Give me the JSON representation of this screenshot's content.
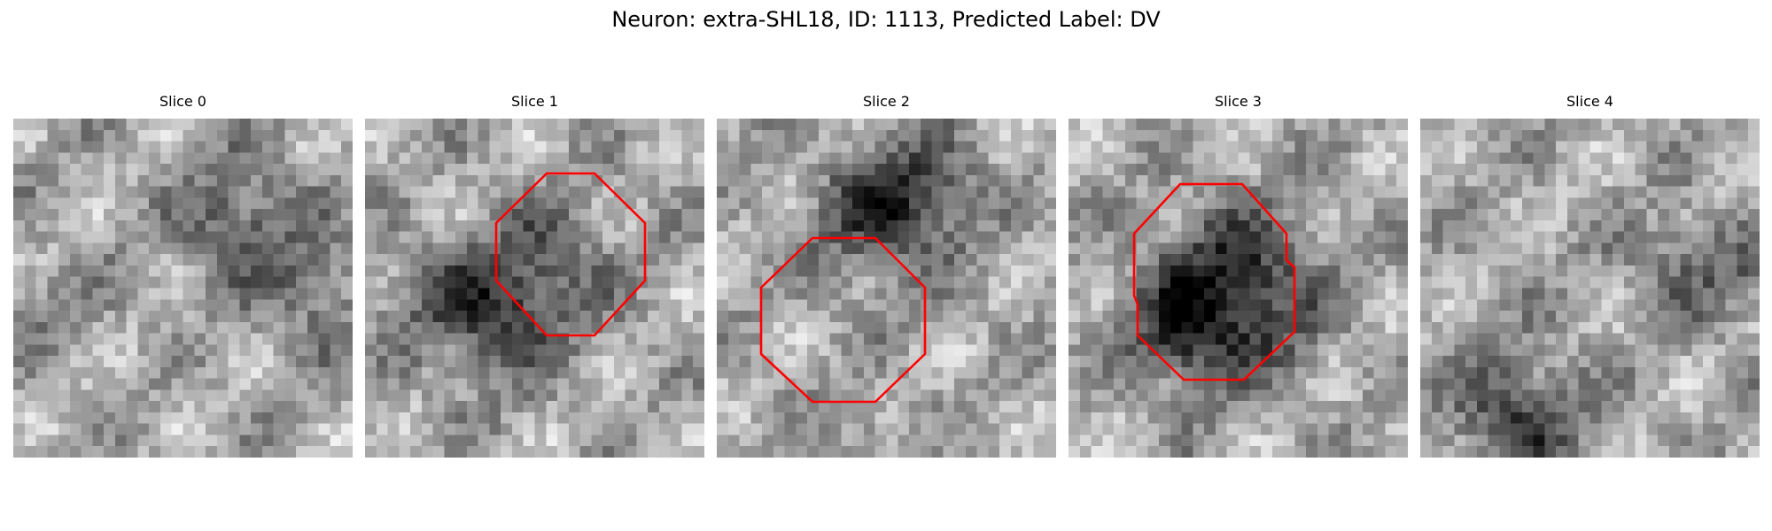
{
  "figure": {
    "title": "Neuron: extra-SHL18, ID: 1113, Predicted Label: DV"
  },
  "roi_color": "#ff0000",
  "slices": [
    {
      "title": "Slice 0",
      "has_roi": false
    },
    {
      "title": "Slice 1",
      "has_roi": true
    },
    {
      "title": "Slice 2",
      "has_roi": true
    },
    {
      "title": "Slice 3",
      "has_roi": true
    },
    {
      "title": "Slice 4",
      "has_roi": false
    }
  ]
}
